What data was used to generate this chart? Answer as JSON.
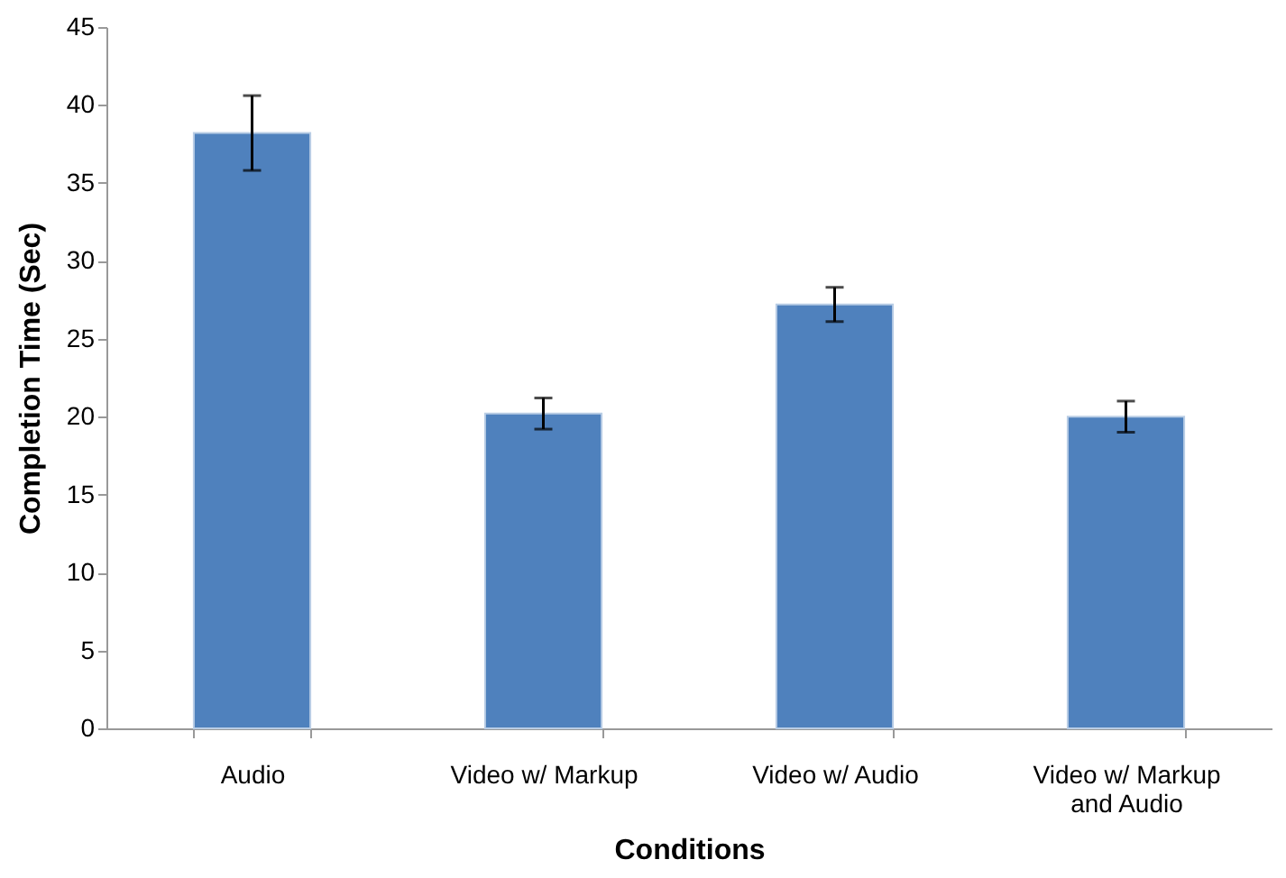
{
  "chart_data": {
    "type": "bar",
    "xlabel": "Conditions",
    "ylabel": "Completion Time (Sec)",
    "categories": [
      "Audio",
      "Video w/ Markup",
      "Video w/ Audio",
      "Video w/ Markup and Audio"
    ],
    "values": [
      38.2,
      20.2,
      27.2,
      20.0
    ],
    "errors": [
      2.4,
      1.0,
      1.1,
      1.0
    ],
    "color": "#4f81bd",
    "ylim": [
      0,
      45
    ],
    "yticks": [
      0,
      5,
      10,
      15,
      20,
      25,
      30,
      35,
      40,
      45
    ],
    "grid": false
  }
}
